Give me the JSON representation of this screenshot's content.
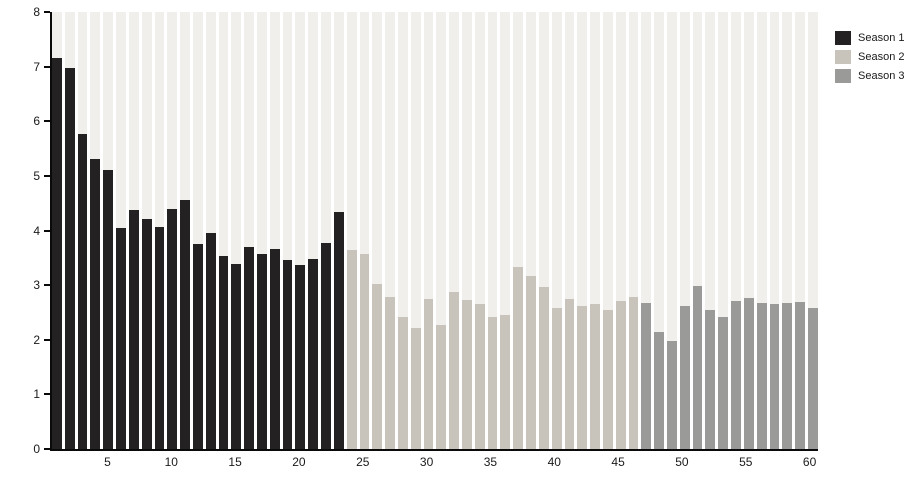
{
  "chart_data": {
    "type": "bar",
    "title": "",
    "xlabel": "",
    "ylabel": "",
    "x_unit": "episode",
    "x_range": [
      1,
      60
    ],
    "ylim": [
      0,
      8
    ],
    "yticks": [
      0,
      1,
      2,
      3,
      4,
      5,
      6,
      7,
      8
    ],
    "xticks": [
      5,
      10,
      15,
      20,
      25,
      30,
      35,
      40,
      45,
      50,
      55,
      60
    ],
    "grid": "off",
    "background_stripes": "one light column per episode",
    "legend_position": "top-right",
    "colors": {
      "season1": "#242122",
      "season2": "#c9c4bb",
      "season3": "#9a9a98",
      "stripe": "#f0efec",
      "axis": "#0a0a0a"
    },
    "series": [
      {
        "name": "Season 1",
        "color": "#242122",
        "first_episode": 1,
        "values": [
          7.15,
          6.98,
          5.77,
          5.31,
          5.1,
          4.05,
          4.38,
          4.21,
          4.06,
          4.4,
          4.56,
          3.75,
          3.96,
          3.54,
          3.39,
          3.69,
          3.57,
          3.67,
          3.46,
          3.37,
          3.48,
          3.78,
          4.34
        ]
      },
      {
        "name": "Season 2",
        "color": "#c9c4bb",
        "first_episode": 24,
        "values": [
          3.65,
          3.57,
          3.03,
          2.78,
          2.42,
          2.21,
          2.74,
          2.27,
          2.88,
          2.73,
          2.66,
          2.42,
          2.46,
          3.34,
          3.16,
          2.97,
          2.58,
          2.75,
          2.61,
          2.65,
          2.54,
          2.71,
          2.78
        ]
      },
      {
        "name": "Season 3",
        "color": "#9a9a98",
        "first_episode": 47,
        "values": [
          2.67,
          2.15,
          1.97,
          2.62,
          2.99,
          2.55,
          2.42,
          2.71,
          2.76,
          2.68,
          2.65,
          2.68,
          2.7,
          2.58
        ]
      }
    ]
  }
}
